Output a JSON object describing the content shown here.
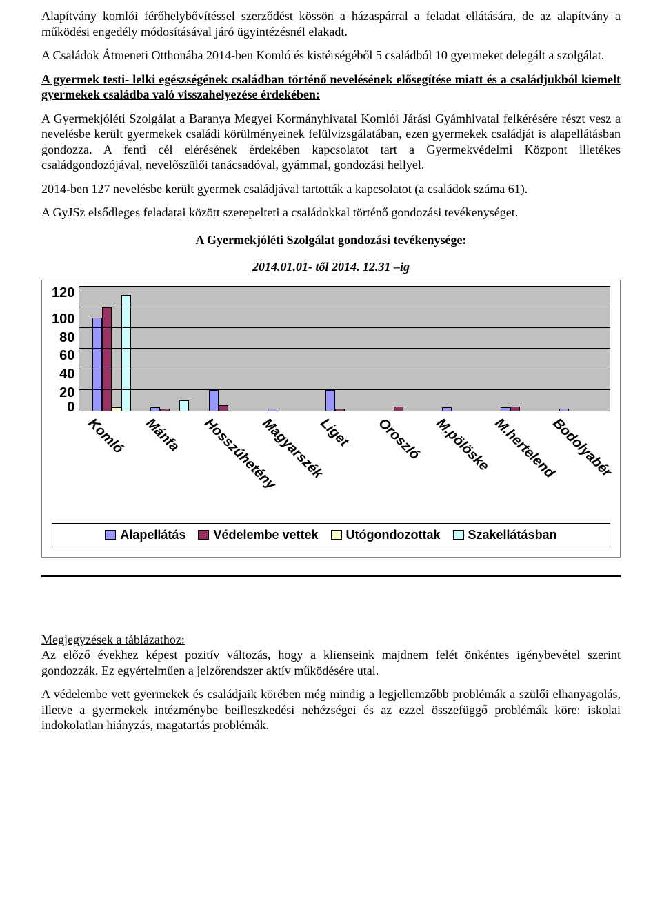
{
  "paragraphs": {
    "p1": "Alapítvány komlói férőhelybővítéssel szerződést kössön a házaspárral a feladat ellátására, de az alapítvány a működési engedély módosításával járó ügyintézésnél elakadt.",
    "p2": "A Családok Átmeneti Otthonába 2014-ben Komló és kistérségéből 5 családból 10 gyermeket delegált a szolgálat.",
    "p3": "A gyermek testi- lelki egészségének családban történő nevelésének elősegítése miatt és a családjukból kiemelt gyermekek családba való visszahelyezése érdekében:",
    "p4": "A Gyermekjóléti Szolgálat a Baranya Megyei Kormányhivatal Komlói Járási Gyámhivatal felkérésére részt vesz a nevelésbe került gyermekek családi körülményeinek felülvizsgálatában, ezen gyermekek családját is alapellátásban gondozza. A fenti cél elérésének érdekében kapcsolatot tart a Gyermekvédelmi Központ illetékes családgondozójával, nevelőszülői tanácsadóval, gyámmal, gondozási hellyel.",
    "p5": "2014-ben 127 nevelésbe került gyermek családjával tartották a kapcsolatot (a családok száma 61).",
    "p6": "A GyJSz elsődleges feladatai között szerepelteti a családokkal történő gondozási tevékenységet.",
    "notes_title": "Megjegyzések a táblázathoz:",
    "notes_1": "Az előző évekhez képest pozitív változás, hogy a klienseink majdnem felét önkéntes igénybevétel szerint gondozzák. Ez egyértelműen a jelzőrendszer aktív működésére utal.",
    "notes_2": "A védelembe vett gyermekek és családjaik körében még mindig a legjellemzőbb problémák a szülői elhanyagolás, illetve a gyermekek intézménybe beilleszkedési nehézségei és az ezzel összefüggő problémák köre: iskolai indokolatlan hiányzás, magatartás problémák."
  },
  "chart": {
    "title": "A Gyermekjóléti Szolgálat gondozási tevékenysége:",
    "subtitle": "2014.01.01- től 2014. 12.31 –ig",
    "ymax": 120,
    "ytick_step": 20,
    "yticks": [
      "120",
      "100",
      "80",
      "60",
      "40",
      "20",
      "0"
    ],
    "background_color": "#c0c0c0",
    "grid_color": "#000000",
    "series": [
      {
        "label": "Alapellátás",
        "color": "#9999ff"
      },
      {
        "label": "Védelembe vettek",
        "color": "#993366"
      },
      {
        "label": "Utógondozottak",
        "color": "#ffffcc"
      },
      {
        "label": "Szakellátásban",
        "color": "#ccffff"
      }
    ],
    "categories": [
      "Komló",
      "Mánfa",
      "Hosszúhetény",
      "Magyarszék",
      "Liget",
      "Oroszló",
      "M.pölöske",
      "M.hertelend",
      "Bodolyabér"
    ],
    "values": [
      [
        90,
        100,
        3,
        112
      ],
      [
        3,
        2,
        0,
        10
      ],
      [
        20,
        5,
        0,
        0
      ],
      [
        2,
        0,
        0,
        0
      ],
      [
        20,
        2,
        0,
        0
      ],
      [
        0,
        4,
        0,
        0
      ],
      [
        3,
        0,
        0,
        0
      ],
      [
        3,
        4,
        0,
        0
      ],
      [
        2,
        0,
        0,
        0
      ]
    ]
  }
}
